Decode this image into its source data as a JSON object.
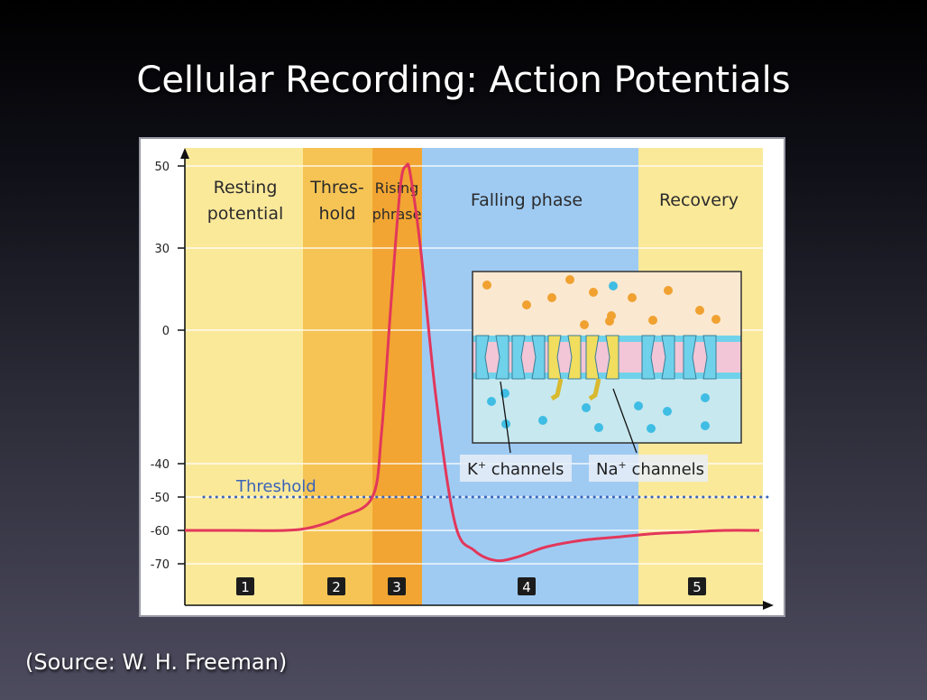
{
  "slide": {
    "title": "Cellular Recording: Action Potentials",
    "source": "(Source: W. H. Freeman)"
  },
  "chart_data": {
    "type": "line",
    "y_ticks": [
      50,
      30,
      0,
      -40,
      -50,
      -60,
      -70
    ],
    "threshold_label": "Threshold",
    "threshold_value": -50,
    "phases": [
      {
        "title_lines": [
          "Resting",
          "potential"
        ],
        "number": "1",
        "color": "#fbe99a"
      },
      {
        "title_lines": [
          "Thres-",
          "hold"
        ],
        "number": "2",
        "color": "#f6c454"
      },
      {
        "title_lines": [
          "Rising",
          "phrase"
        ],
        "number": "3",
        "color": "#f2a532"
      },
      {
        "title_lines": [
          "Falling phase"
        ],
        "number": "4",
        "color": "#9fcbf3"
      },
      {
        "title_lines": [
          "Recovery"
        ],
        "number": "5",
        "color": "#fbe99a"
      }
    ],
    "series": [
      {
        "color": "#e2375b",
        "x": [
          0,
          0.5,
          1.0,
          1.3,
          1.6,
          1.85,
          2.0,
          2.15,
          2.3,
          2.42,
          2.5,
          2.58,
          2.7,
          2.85,
          3.0,
          3.3,
          3.6,
          4.0,
          4.5,
          5.0,
          5.5,
          6.0,
          6.5,
          7.0
        ],
        "y": [
          -60,
          -60,
          -60,
          -59,
          -56,
          -50,
          -30,
          10,
          45,
          50,
          48,
          30,
          -20,
          -58,
          -66,
          -69,
          -68,
          -65,
          -63,
          -62,
          -61,
          -60.5,
          -60,
          -60
        ]
      }
    ]
  },
  "inset": {
    "k_label_base": "K",
    "na_label_base": "Na",
    "charge_sup": "+",
    "channels_word": " channels"
  },
  "colors": {
    "threshold_line": "#3a63b8",
    "extracellular": "#fbe8d0",
    "intracellular": "#c7e8ee",
    "k_channel": "#6fd2ea",
    "na_channel": "#f1dd5e",
    "membrane_pink": "#f2c6d6",
    "orange_ion": "#f0a130",
    "blue_ion": "#3fbde4"
  }
}
